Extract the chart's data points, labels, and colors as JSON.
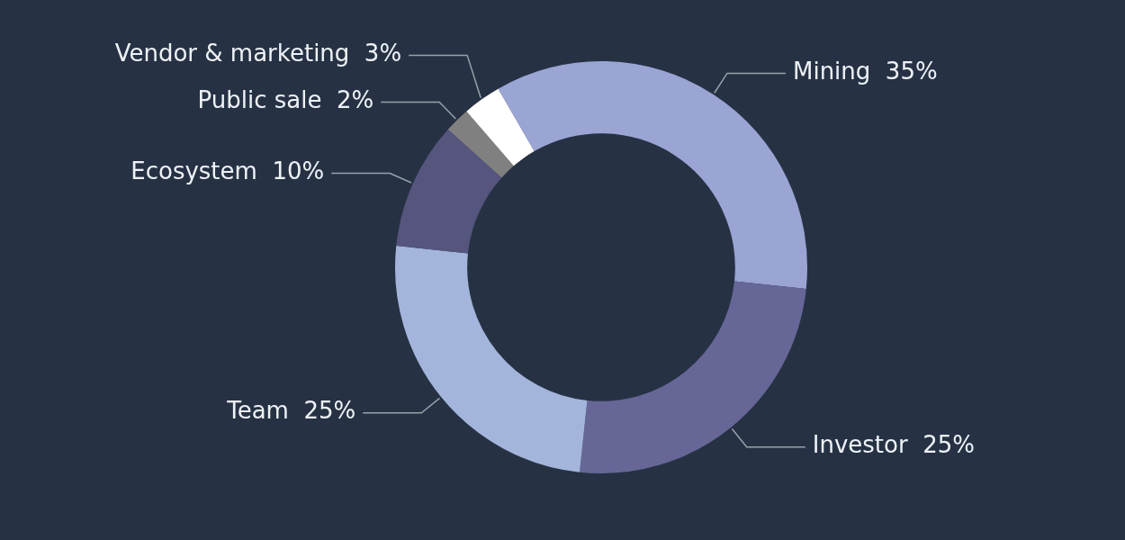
{
  "chart_data": {
    "type": "donut",
    "categories": [
      "Mining",
      "Investor",
      "Team",
      "Ecosystem",
      "Public sale",
      "Vendor & marketing"
    ],
    "values": [
      35,
      25,
      25,
      10,
      2,
      3
    ],
    "colors": [
      "#9aa5d4",
      "#666797",
      "#a4b5dc",
      "#55557e",
      "#808080",
      "#ffffff"
    ],
    "value_labels": [
      "35%",
      "25%",
      "25%",
      "10%",
      "2%",
      "3%"
    ],
    "legend": false
  }
}
